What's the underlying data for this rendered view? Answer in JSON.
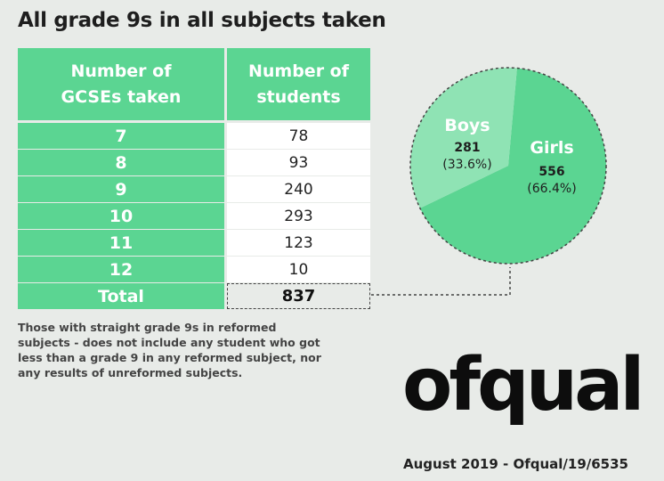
{
  "title": "All grade 9s in all subjects taken",
  "table": {
    "headers": [
      "Number of GCSEs taken",
      "Number of students"
    ],
    "header_lines": [
      [
        "Number of",
        "GCSEs taken"
      ],
      [
        "Number of",
        "students"
      ]
    ],
    "rows": [
      {
        "gcses": "7",
        "students": "78"
      },
      {
        "gcses": "8",
        "students": "93"
      },
      {
        "gcses": "9",
        "students": "240"
      },
      {
        "gcses": "10",
        "students": "293"
      },
      {
        "gcses": "11",
        "students": "123"
      },
      {
        "gcses": "12",
        "students": "10"
      }
    ],
    "total_label": "Total",
    "total_value": "837"
  },
  "note": "Those with straight grade 9s in reformed subjects - does not include any student who got less than a grade 9 in any reformed subject, nor any results of unreformed subjects.",
  "logo_text": "ofqual",
  "footer": "August 2019 - Ofqual/19/6535",
  "colors": {
    "green": "#5bd592",
    "light_green": "#8fe3b4",
    "background": "#e8ebe8"
  },
  "chart_data": {
    "type": "pie",
    "title": "",
    "slices": [
      {
        "label": "Boys",
        "value": 281,
        "percent_label": "(33.6%)",
        "color": "#8fe3b4"
      },
      {
        "label": "Girls",
        "value": 556,
        "percent_label": "(66.4%)",
        "color": "#5bd592"
      }
    ],
    "total": 837
  }
}
